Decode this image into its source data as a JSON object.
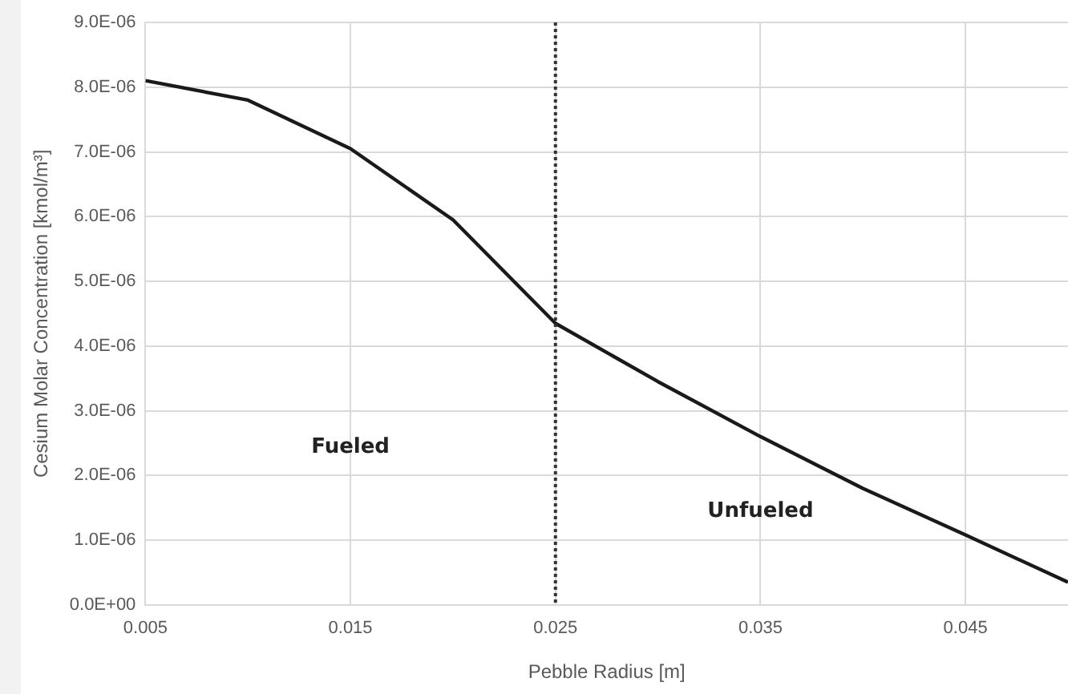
{
  "chart_data": {
    "type": "line",
    "xlabel": "Pebble Radius [m]",
    "ylabel": "Cesium Molar Concentration [kmol/m³]",
    "x": [
      0.005,
      0.01,
      0.015,
      0.02,
      0.025,
      0.03,
      0.035,
      0.04,
      0.045,
      0.05
    ],
    "series": [
      {
        "color": "#1a1a1a",
        "values": [
          8.1e-06,
          7.8e-06,
          7.05e-06,
          5.95e-06,
          4.35e-06,
          3.45e-06,
          2.6e-06,
          1.8e-06,
          1.08e-06,
          3.5e-07
        ]
      }
    ],
    "xlim": [
      0.005,
      0.05
    ],
    "xticks": [
      0.005,
      0.015,
      0.025,
      0.035,
      0.045
    ],
    "ylim": [
      0,
      9e-06
    ],
    "yticks": [
      {
        "value": 0,
        "label": "0.0E+00"
      },
      {
        "value": 1e-06,
        "label": "1.0E-06"
      },
      {
        "value": 2e-06,
        "label": "2.0E-06"
      },
      {
        "value": 3e-06,
        "label": "3.0E-06"
      },
      {
        "value": 4e-06,
        "label": "4.0E-06"
      },
      {
        "value": 5e-06,
        "label": "5.0E-06"
      },
      {
        "value": 6e-06,
        "label": "6.0E-06"
      },
      {
        "value": 7e-06,
        "label": "7.0E-06"
      },
      {
        "value": 8e-06,
        "label": "8.0E-06"
      },
      {
        "value": 9e-06,
        "label": "9.0E-06"
      }
    ],
    "ref_lines": [
      {
        "axis": "x",
        "value": 0.025,
        "color": "#333333",
        "line_style": "dotted"
      }
    ],
    "annotations": [
      "Fueled",
      "Unfueled"
    ],
    "grid": true,
    "legend": false,
    "marker": "none",
    "line_style": "solid"
  }
}
